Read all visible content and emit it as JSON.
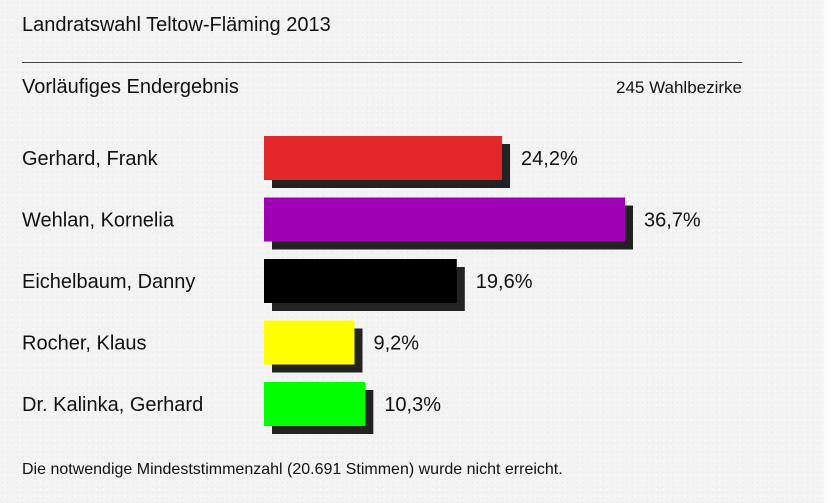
{
  "header": {
    "title": "Landratswahl Teltow-Fläming 2013",
    "subtitle": "Vorläufiges Endergebnis",
    "districts": "245 Wahlbezirke"
  },
  "footnote": "Die notwendige Mindeststimmenzahl (20.691 Stimmen) wurde nicht erreicht.",
  "chart_data": {
    "type": "bar",
    "orientation": "horizontal",
    "title": "Vorläufiges Endergebnis",
    "categories": [
      "Gerhard, Frank",
      "Wehlan, Kornelia",
      "Eichelbaum, Danny",
      "Rocher, Klaus",
      "Dr. Kalinka, Gerhard"
    ],
    "values": [
      24.2,
      36.7,
      19.6,
      9.2,
      10.3
    ],
    "value_labels": [
      "24,2%",
      "36,7%",
      "19,6%",
      "9,2%",
      "10,3%"
    ],
    "colors": [
      "#e0282a",
      "#a000b4",
      "#000000",
      "#ffff00",
      "#00ff00"
    ],
    "shadow_color": "#222222",
    "unit": "%",
    "grid": false,
    "legend": "none"
  }
}
